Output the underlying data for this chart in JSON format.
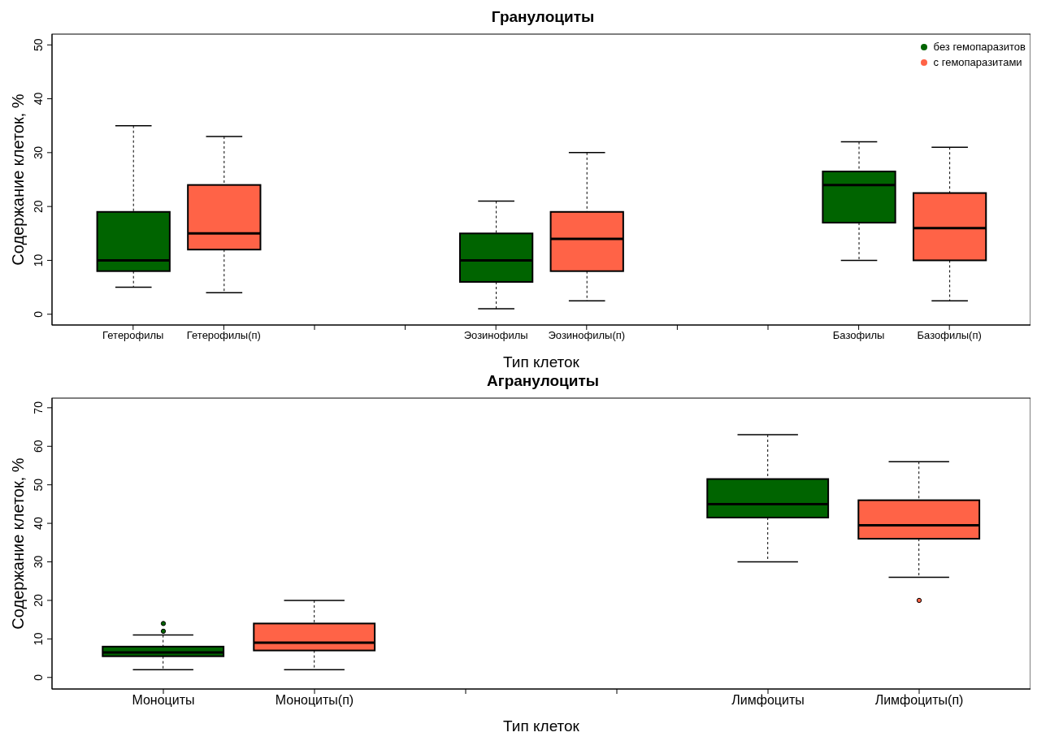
{
  "chart_data": [
    {
      "type": "box",
      "title": "Гранулоциты",
      "xlabel": "Тип клеток",
      "ylabel": "Содержание клеток, %",
      "categories": [
        "Гетерофилы",
        "Гетерофилы(п)",
        null,
        null,
        "Эозинофилы",
        "Эозинофилы(п)",
        null,
        null,
        "Базофилы",
        "Базофилы(п)"
      ],
      "ylim": [
        -2,
        52
      ],
      "yticks": [
        0,
        10,
        20,
        30,
        40,
        50
      ],
      "legend": "top right",
      "series": [
        {
          "name": "без гемопаразитов",
          "color": "#006400",
          "boxes": [
            {
              "low": 5,
              "q1": 8,
              "median": 10,
              "q3": 19,
              "high": 35
            },
            null,
            null,
            null,
            {
              "low": 1,
              "q1": 6,
              "median": 10,
              "q3": 15,
              "high": 21
            },
            null,
            null,
            null,
            {
              "low": 10,
              "q1": 17,
              "median": 24,
              "q3": 26.5,
              "high": 32
            },
            null
          ]
        },
        {
          "name": "с гемопаразитами",
          "color": "#ff6347",
          "boxes": [
            null,
            {
              "low": 4,
              "q1": 12,
              "median": 15,
              "q3": 24,
              "high": 33
            },
            null,
            null,
            null,
            {
              "low": 2.5,
              "q1": 8,
              "median": 14,
              "q3": 19,
              "high": 30
            },
            null,
            null,
            null,
            {
              "low": 2.5,
              "q1": 10,
              "median": 16,
              "q3": 22.5,
              "high": 31
            }
          ]
        }
      ]
    },
    {
      "type": "box",
      "title": "Агранулоциты",
      "xlabel": "Тип клеток",
      "ylabel": "Содержание клеток, %",
      "categories": [
        "Моноциты",
        "Моноциты(п)",
        null,
        null,
        "Лимфоциты",
        "Лимфоциты(п)"
      ],
      "ylim": [
        -3,
        72.5
      ],
      "yticks": [
        0,
        10,
        20,
        30,
        40,
        50,
        60,
        70
      ],
      "series": [
        {
          "color": "#006400",
          "boxes": [
            {
              "low": 2,
              "q1": 5.5,
              "median": 6.5,
              "q3": 8,
              "high": 11,
              "outliers": [
                12,
                14
              ]
            },
            null,
            null,
            null,
            {
              "low": 30,
              "q1": 41.5,
              "median": 45,
              "q3": 51.5,
              "high": 63
            },
            null
          ]
        },
        {
          "color": "#ff6347",
          "boxes": [
            null,
            {
              "low": 2,
              "q1": 7,
              "median": 9,
              "q3": 14,
              "high": 20
            },
            null,
            null,
            null,
            {
              "low": 26,
              "q1": 36,
              "median": 39.5,
              "q3": 46,
              "high": 56,
              "outliers": [
                20
              ]
            }
          ]
        }
      ]
    }
  ]
}
